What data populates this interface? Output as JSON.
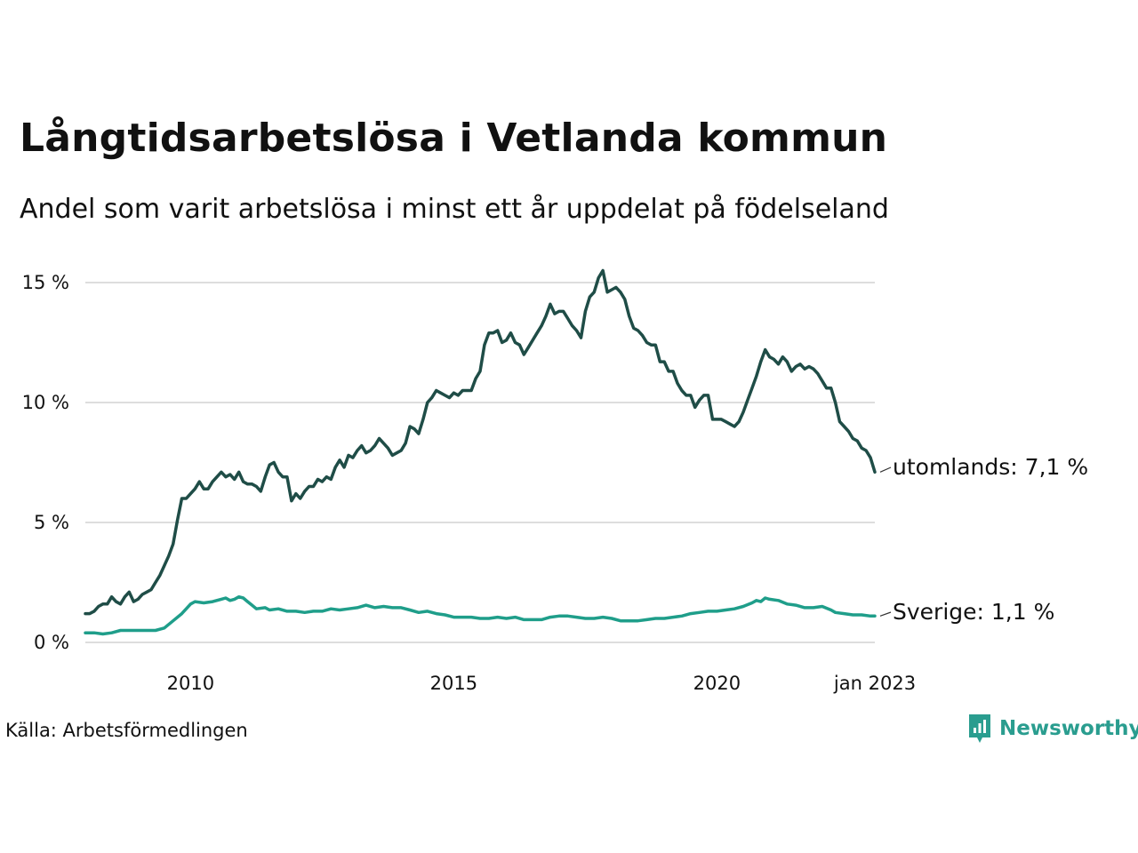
{
  "header": {
    "title": "Långtidsarbetslösa i Vetlanda kommun",
    "subtitle": "Andel som varit arbetslösa i minst ett år uppdelat på födelseland"
  },
  "footer": {
    "source": "Källa: Arbetsförmedlingen",
    "brand": "Newsworthy"
  },
  "colors": {
    "utomlands": "#1f4d47",
    "sverige": "#1f9e8a",
    "grid": "#dddddd",
    "brand": "#2a9d8f"
  },
  "chart_data": {
    "type": "line",
    "title": "Långtidsarbetslösa i Vetlanda kommun",
    "subtitle": "Andel som varit arbetslösa i minst ett år uppdelat på födelseland",
    "xlabel": "",
    "ylabel": "",
    "xlim": [
      "2008-01",
      "2023-01"
    ],
    "ylim": [
      0,
      15
    ],
    "y_ticks": [
      {
        "value": 0,
        "label": "0 %"
      },
      {
        "value": 5,
        "label": "5 %"
      },
      {
        "value": 10,
        "label": "10 %"
      },
      {
        "value": 15,
        "label": "15 %"
      }
    ],
    "x_ticks": [
      {
        "value": "2010-01",
        "label": "2010"
      },
      {
        "value": "2015-01",
        "label": "2015"
      },
      {
        "value": "2020-01",
        "label": "2020"
      },
      {
        "value": "2023-01",
        "label": "jan 2023"
      }
    ],
    "grid": "horizontal",
    "legend": "direct labels at line ends",
    "series": [
      {
        "name": "utomlands",
        "end_label": "utomlands: 7,1 %",
        "points": [
          [
            "2008-01",
            1.2
          ],
          [
            "2008-02",
            1.2
          ],
          [
            "2008-03",
            1.3
          ],
          [
            "2008-04",
            1.5
          ],
          [
            "2008-05",
            1.6
          ],
          [
            "2008-06",
            1.6
          ],
          [
            "2008-07",
            1.9
          ],
          [
            "2008-08",
            1.7
          ],
          [
            "2008-09",
            1.6
          ],
          [
            "2008-10",
            1.9
          ],
          [
            "2008-11",
            2.1
          ],
          [
            "2008-12",
            1.7
          ],
          [
            "2009-01",
            1.8
          ],
          [
            "2009-02",
            2.0
          ],
          [
            "2009-03",
            2.1
          ],
          [
            "2009-04",
            2.2
          ],
          [
            "2009-05",
            2.5
          ],
          [
            "2009-06",
            2.8
          ],
          [
            "2009-07",
            3.2
          ],
          [
            "2009-08",
            3.6
          ],
          [
            "2009-09",
            4.1
          ],
          [
            "2009-10",
            5.1
          ],
          [
            "2009-11",
            6.0
          ],
          [
            "2009-12",
            6.0
          ],
          [
            "2010-01",
            6.2
          ],
          [
            "2010-02",
            6.4
          ],
          [
            "2010-03",
            6.7
          ],
          [
            "2010-04",
            6.4
          ],
          [
            "2010-05",
            6.4
          ],
          [
            "2010-06",
            6.7
          ],
          [
            "2010-07",
            6.9
          ],
          [
            "2010-08",
            7.1
          ],
          [
            "2010-09",
            6.9
          ],
          [
            "2010-10",
            7.0
          ],
          [
            "2010-11",
            6.8
          ],
          [
            "2010-12",
            7.1
          ],
          [
            "2011-01",
            6.7
          ],
          [
            "2011-02",
            6.6
          ],
          [
            "2011-03",
            6.6
          ],
          [
            "2011-04",
            6.5
          ],
          [
            "2011-05",
            6.3
          ],
          [
            "2011-06",
            6.9
          ],
          [
            "2011-07",
            7.4
          ],
          [
            "2011-08",
            7.5
          ],
          [
            "2011-09",
            7.1
          ],
          [
            "2011-10",
            6.9
          ],
          [
            "2011-11",
            6.9
          ],
          [
            "2011-12",
            5.9
          ],
          [
            "2012-01",
            6.2
          ],
          [
            "2012-02",
            6.0
          ],
          [
            "2012-03",
            6.3
          ],
          [
            "2012-04",
            6.5
          ],
          [
            "2012-05",
            6.5
          ],
          [
            "2012-06",
            6.8
          ],
          [
            "2012-07",
            6.7
          ],
          [
            "2012-08",
            6.9
          ],
          [
            "2012-09",
            6.8
          ],
          [
            "2012-10",
            7.3
          ],
          [
            "2012-11",
            7.6
          ],
          [
            "2012-12",
            7.3
          ],
          [
            "2013-01",
            7.8
          ],
          [
            "2013-02",
            7.7
          ],
          [
            "2013-03",
            8.0
          ],
          [
            "2013-04",
            8.2
          ],
          [
            "2013-05",
            7.9
          ],
          [
            "2013-06",
            8.0
          ],
          [
            "2013-07",
            8.2
          ],
          [
            "2013-08",
            8.5
          ],
          [
            "2013-09",
            8.3
          ],
          [
            "2013-10",
            8.1
          ],
          [
            "2013-11",
            7.8
          ],
          [
            "2013-12",
            7.9
          ],
          [
            "2014-01",
            8.0
          ],
          [
            "2014-02",
            8.3
          ],
          [
            "2014-03",
            9.0
          ],
          [
            "2014-04",
            8.9
          ],
          [
            "2014-05",
            8.7
          ],
          [
            "2014-06",
            9.3
          ],
          [
            "2014-07",
            10.0
          ],
          [
            "2014-08",
            10.2
          ],
          [
            "2014-09",
            10.5
          ],
          [
            "2014-10",
            10.4
          ],
          [
            "2014-11",
            10.3
          ],
          [
            "2014-12",
            10.2
          ],
          [
            "2015-01",
            10.4
          ],
          [
            "2015-02",
            10.3
          ],
          [
            "2015-03",
            10.5
          ],
          [
            "2015-04",
            10.5
          ],
          [
            "2015-05",
            10.5
          ],
          [
            "2015-06",
            11.0
          ],
          [
            "2015-07",
            11.3
          ],
          [
            "2015-08",
            12.4
          ],
          [
            "2015-09",
            12.9
          ],
          [
            "2015-10",
            12.9
          ],
          [
            "2015-11",
            13.0
          ],
          [
            "2015-12",
            12.5
          ],
          [
            "2016-01",
            12.6
          ],
          [
            "2016-02",
            12.9
          ],
          [
            "2016-03",
            12.5
          ],
          [
            "2016-04",
            12.4
          ],
          [
            "2016-05",
            12.0
          ],
          [
            "2016-06",
            12.3
          ],
          [
            "2016-07",
            12.6
          ],
          [
            "2016-08",
            12.9
          ],
          [
            "2016-09",
            13.2
          ],
          [
            "2016-10",
            13.6
          ],
          [
            "2016-11",
            14.1
          ],
          [
            "2016-12",
            13.7
          ],
          [
            "2017-01",
            13.8
          ],
          [
            "2017-02",
            13.8
          ],
          [
            "2017-03",
            13.5
          ],
          [
            "2017-04",
            13.2
          ],
          [
            "2017-05",
            13.0
          ],
          [
            "2017-06",
            12.7
          ],
          [
            "2017-07",
            13.8
          ],
          [
            "2017-08",
            14.4
          ],
          [
            "2017-09",
            14.6
          ],
          [
            "2017-10",
            15.2
          ],
          [
            "2017-11",
            15.5
          ],
          [
            "2017-12",
            14.6
          ],
          [
            "2018-01",
            14.7
          ],
          [
            "2018-02",
            14.8
          ],
          [
            "2018-03",
            14.6
          ],
          [
            "2018-04",
            14.3
          ],
          [
            "2018-05",
            13.6
          ],
          [
            "2018-06",
            13.1
          ],
          [
            "2018-07",
            13.0
          ],
          [
            "2018-08",
            12.8
          ],
          [
            "2018-09",
            12.5
          ],
          [
            "2018-10",
            12.4
          ],
          [
            "2018-11",
            12.4
          ],
          [
            "2018-12",
            11.7
          ],
          [
            "2019-01",
            11.7
          ],
          [
            "2019-02",
            11.3
          ],
          [
            "2019-03",
            11.3
          ],
          [
            "2019-04",
            10.8
          ],
          [
            "2019-05",
            10.5
          ],
          [
            "2019-06",
            10.3
          ],
          [
            "2019-07",
            10.3
          ],
          [
            "2019-08",
            9.8
          ],
          [
            "2019-09",
            10.1
          ],
          [
            "2019-10",
            10.3
          ],
          [
            "2019-11",
            10.3
          ],
          [
            "2019-12",
            9.3
          ],
          [
            "2020-01",
            9.3
          ],
          [
            "2020-02",
            9.3
          ],
          [
            "2020-03",
            9.2
          ],
          [
            "2020-04",
            9.1
          ],
          [
            "2020-05",
            9.0
          ],
          [
            "2020-06",
            9.2
          ],
          [
            "2020-07",
            9.6
          ],
          [
            "2020-08",
            10.1
          ],
          [
            "2020-09",
            10.6
          ],
          [
            "2020-10",
            11.1
          ],
          [
            "2020-11",
            11.7
          ],
          [
            "2020-12",
            12.2
          ],
          [
            "2021-01",
            11.9
          ],
          [
            "2021-02",
            11.8
          ],
          [
            "2021-03",
            11.6
          ],
          [
            "2021-04",
            11.9
          ],
          [
            "2021-05",
            11.7
          ],
          [
            "2021-06",
            11.3
          ],
          [
            "2021-07",
            11.5
          ],
          [
            "2021-08",
            11.6
          ],
          [
            "2021-09",
            11.4
          ],
          [
            "2021-10",
            11.5
          ],
          [
            "2021-11",
            11.4
          ],
          [
            "2021-12",
            11.2
          ],
          [
            "2022-01",
            10.9
          ],
          [
            "2022-02",
            10.6
          ],
          [
            "2022-03",
            10.6
          ],
          [
            "2022-04",
            10.0
          ],
          [
            "2022-05",
            9.2
          ],
          [
            "2022-06",
            9.0
          ],
          [
            "2022-07",
            8.8
          ],
          [
            "2022-08",
            8.5
          ],
          [
            "2022-09",
            8.4
          ],
          [
            "2022-10",
            8.1
          ],
          [
            "2022-11",
            8.0
          ],
          [
            "2022-12",
            7.7
          ],
          [
            "2023-01",
            7.1
          ]
        ]
      },
      {
        "name": "Sverige",
        "end_label": "Sverige: 1,1 %",
        "points": [
          [
            "2008-01",
            0.4
          ],
          [
            "2008-03",
            0.4
          ],
          [
            "2008-05",
            0.35
          ],
          [
            "2008-07",
            0.4
          ],
          [
            "2008-09",
            0.5
          ],
          [
            "2008-11",
            0.5
          ],
          [
            "2009-01",
            0.5
          ],
          [
            "2009-03",
            0.5
          ],
          [
            "2009-05",
            0.5
          ],
          [
            "2009-07",
            0.6
          ],
          [
            "2009-09",
            0.9
          ],
          [
            "2009-11",
            1.2
          ],
          [
            "2010-01",
            1.6
          ],
          [
            "2010-02",
            1.7
          ],
          [
            "2010-04",
            1.65
          ],
          [
            "2010-06",
            1.7
          ],
          [
            "2010-08",
            1.8
          ],
          [
            "2010-09",
            1.85
          ],
          [
            "2010-10",
            1.75
          ],
          [
            "2010-11",
            1.8
          ],
          [
            "2010-12",
            1.9
          ],
          [
            "2011-01",
            1.85
          ],
          [
            "2011-02",
            1.7
          ],
          [
            "2011-03",
            1.55
          ],
          [
            "2011-04",
            1.4
          ],
          [
            "2011-06",
            1.45
          ],
          [
            "2011-07",
            1.35
          ],
          [
            "2011-09",
            1.4
          ],
          [
            "2011-11",
            1.3
          ],
          [
            "2012-01",
            1.3
          ],
          [
            "2012-03",
            1.25
          ],
          [
            "2012-05",
            1.3
          ],
          [
            "2012-07",
            1.3
          ],
          [
            "2012-09",
            1.4
          ],
          [
            "2012-11",
            1.35
          ],
          [
            "2013-01",
            1.4
          ],
          [
            "2013-03",
            1.45
          ],
          [
            "2013-05",
            1.55
          ],
          [
            "2013-07",
            1.45
          ],
          [
            "2013-09",
            1.5
          ],
          [
            "2013-11",
            1.45
          ],
          [
            "2014-01",
            1.45
          ],
          [
            "2014-03",
            1.35
          ],
          [
            "2014-05",
            1.25
          ],
          [
            "2014-07",
            1.3
          ],
          [
            "2014-09",
            1.2
          ],
          [
            "2014-11",
            1.15
          ],
          [
            "2015-01",
            1.05
          ],
          [
            "2015-03",
            1.05
          ],
          [
            "2015-05",
            1.05
          ],
          [
            "2015-07",
            1.0
          ],
          [
            "2015-09",
            1.0
          ],
          [
            "2015-11",
            1.05
          ],
          [
            "2016-01",
            1.0
          ],
          [
            "2016-03",
            1.05
          ],
          [
            "2016-05",
            0.95
          ],
          [
            "2016-07",
            0.95
          ],
          [
            "2016-09",
            0.95
          ],
          [
            "2016-11",
            1.05
          ],
          [
            "2017-01",
            1.1
          ],
          [
            "2017-03",
            1.1
          ],
          [
            "2017-05",
            1.05
          ],
          [
            "2017-07",
            1.0
          ],
          [
            "2017-09",
            1.0
          ],
          [
            "2017-11",
            1.05
          ],
          [
            "2018-01",
            1.0
          ],
          [
            "2018-03",
            0.9
          ],
          [
            "2018-05",
            0.9
          ],
          [
            "2018-07",
            0.9
          ],
          [
            "2018-09",
            0.95
          ],
          [
            "2018-11",
            1.0
          ],
          [
            "2019-01",
            1.0
          ],
          [
            "2019-03",
            1.05
          ],
          [
            "2019-05",
            1.1
          ],
          [
            "2019-07",
            1.2
          ],
          [
            "2019-09",
            1.25
          ],
          [
            "2019-11",
            1.3
          ],
          [
            "2020-01",
            1.3
          ],
          [
            "2020-03",
            1.35
          ],
          [
            "2020-05",
            1.4
          ],
          [
            "2020-07",
            1.5
          ],
          [
            "2020-09",
            1.65
          ],
          [
            "2020-10",
            1.75
          ],
          [
            "2020-11",
            1.7
          ],
          [
            "2020-12",
            1.85
          ],
          [
            "2021-01",
            1.8
          ],
          [
            "2021-03",
            1.75
          ],
          [
            "2021-05",
            1.6
          ],
          [
            "2021-07",
            1.55
          ],
          [
            "2021-09",
            1.45
          ],
          [
            "2021-11",
            1.45
          ],
          [
            "2022-01",
            1.5
          ],
          [
            "2022-03",
            1.35
          ],
          [
            "2022-04",
            1.25
          ],
          [
            "2022-06",
            1.2
          ],
          [
            "2022-08",
            1.15
          ],
          [
            "2022-10",
            1.15
          ],
          [
            "2022-12",
            1.1
          ],
          [
            "2023-01",
            1.1
          ]
        ]
      }
    ]
  }
}
